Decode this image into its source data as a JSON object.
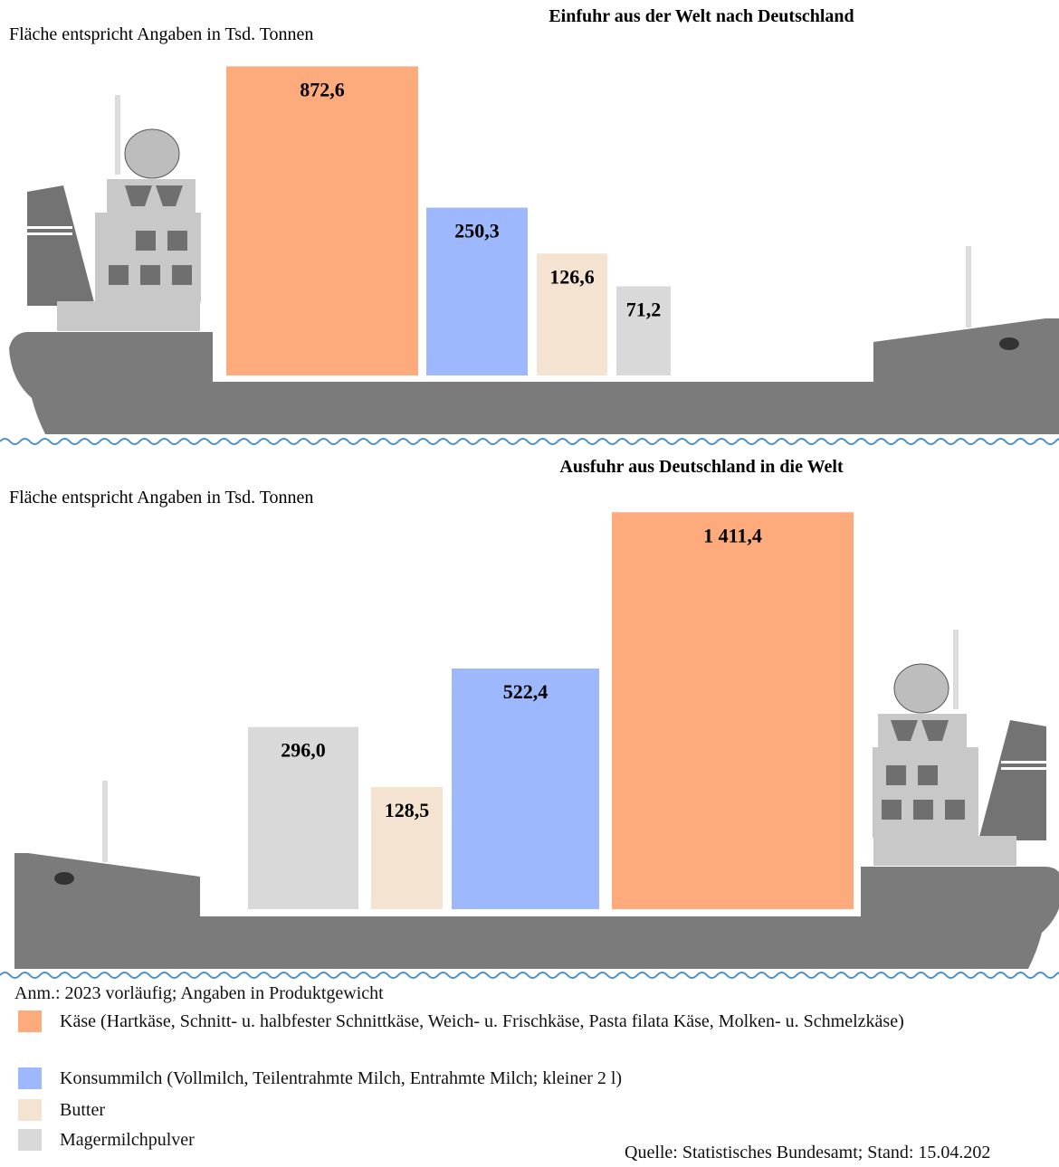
{
  "chart_data": [
    {
      "type": "area",
      "title": "Einfuhr  aus der Welt nach Deutschland",
      "note": "Fläche entspricht Angaben in Tsd. Tonnen",
      "values": [
        872.6,
        250.3,
        126.6,
        71.2
      ],
      "value_labels": [
        "872,6",
        "250,3",
        "126,6",
        "71,2"
      ],
      "colors": [
        "#fdaa7c",
        "#9db8fc",
        "#f5e3d1",
        "#d9d9d9"
      ]
    },
    {
      "type": "area",
      "title": "Ausfuhr aus Deutschland in die Welt",
      "note": "Fläche entspricht Angaben in Tsd. Tonnen",
      "values": [
        296.0,
        128.5,
        522.4,
        1411.4
      ],
      "value_labels": [
        "296,0",
        "128,5",
        "522,4",
        "1 411,4"
      ],
      "colors": [
        "#d9d9d9",
        "#f5e3d1",
        "#9db8fc",
        "#fdaa7c"
      ]
    }
  ],
  "footnote": "Anm.: 2023 vorläufig; Angaben in Produktgewicht",
  "legend": [
    {
      "label": "Käse (Hartkäse, Schnitt- u. halbfester Schnittkäse, Weich- u. Frischkäse, Pasta filata Käse, Molken- u. Schmelzkäse)",
      "color": "#fdaa7c"
    },
    {
      "label": "Konsummilch (Vollmilch, Teilentrahmte Milch, Entrahmte Milch; kleiner 2 l)",
      "color": "#9db8fc"
    },
    {
      "label": "Butter",
      "color": "#f5e3d1"
    },
    {
      "label": "Magermilchpulver",
      "color": "#d9d9d9"
    }
  ],
  "source": "Quelle: Statistisches Bundesamt; Stand: 15.04.202"
}
